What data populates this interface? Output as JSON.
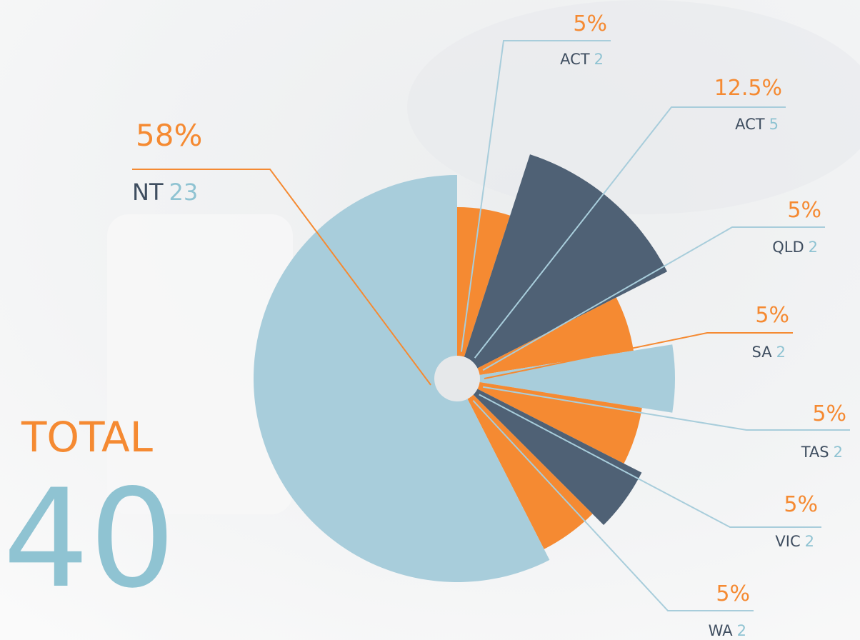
{
  "chart_data": {
    "type": "rose",
    "categories": [
      "ACT",
      "ACT",
      "QLD",
      "SA",
      "TAS",
      "VIC",
      "WA",
      "NT"
    ],
    "counts": [
      2,
      5,
      2,
      2,
      2,
      2,
      2,
      23
    ],
    "values": [
      5,
      12.5,
      5,
      5,
      5,
      5,
      5,
      58
    ],
    "value_labels": [
      "5%",
      "12.5%",
      "5%",
      "5%",
      "5%",
      "5%",
      "5%",
      "58%"
    ],
    "colors": [
      "#f58a32",
      "#4f6175",
      "#f58a32",
      "#a8cddb",
      "#f58a32",
      "#4f6175",
      "#f58a32",
      "#a8cddb"
    ],
    "leader_colors": [
      "#a8cddb",
      "#a8cddb",
      "#a8cddb",
      "#f58a32",
      "#a8cddb",
      "#a8cddb",
      "#a8cddb",
      "#f58a32"
    ],
    "total_label": "TOTAL",
    "total": 40
  }
}
